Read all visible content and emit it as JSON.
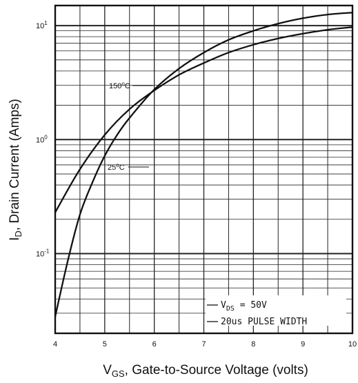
{
  "chart_data": {
    "type": "line",
    "title": "",
    "xlabel": {
      "main": "V",
      "sub": "GS",
      "rest": ", Gate-to-Source Voltage (volts)"
    },
    "ylabel": {
      "main": "I",
      "sub": "D",
      "rest": ", Drain Current (Amps)"
    },
    "xlim": [
      4,
      10
    ],
    "ylim": [
      0.02,
      15
    ],
    "yscale": "log",
    "grid": true,
    "x_ticks": [
      "4",
      "5",
      "6",
      "7",
      "8",
      "9",
      "10"
    ],
    "y_ticks": [
      {
        "base": "10",
        "exp": "1",
        "value": 10
      },
      {
        "base": "10",
        "exp": "0",
        "value": 1
      },
      {
        "base": "10",
        "exp": "-1",
        "value": 0.1
      }
    ],
    "series": [
      {
        "name": "150°C",
        "label": {
          "num": "150",
          "deg": "o",
          "unit": "C"
        },
        "x": [
          4.0,
          4.5,
          5.0,
          5.5,
          6.0,
          6.5,
          7.0,
          7.5,
          8.0,
          8.5,
          9.0,
          9.5,
          10.0
        ],
        "y": [
          0.23,
          0.55,
          1.1,
          1.85,
          2.7,
          3.7,
          4.7,
          5.8,
          6.8,
          7.7,
          8.5,
          9.2,
          9.7
        ]
      },
      {
        "name": "25°C",
        "label": {
          "num": "25",
          "deg": "o",
          "unit": "C"
        },
        "x": [
          4.0,
          4.25,
          4.5,
          4.75,
          5.0,
          5.25,
          5.5,
          6.0,
          6.5,
          7.0,
          7.5,
          8.0,
          8.5,
          9.0,
          9.5,
          10.0
        ],
        "y": [
          0.028,
          0.085,
          0.22,
          0.42,
          0.72,
          1.1,
          1.55,
          2.75,
          4.2,
          5.8,
          7.5,
          9.0,
          10.4,
          11.6,
          12.5,
          13.0
        ]
      }
    ],
    "annotations": [
      {
        "main": "V",
        "sub": "DS",
        "rest": " = 50V"
      },
      {
        "main": "20us PULSE WIDTH",
        "sub": "",
        "rest": ""
      }
    ]
  }
}
